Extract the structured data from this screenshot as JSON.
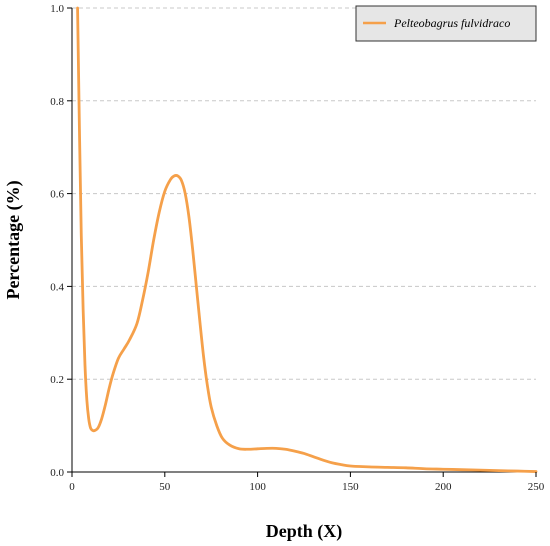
{
  "chart_data": {
    "type": "line",
    "title": "",
    "xlabel": "Depth (X)",
    "ylabel": "Percentage (%)",
    "xlim": [
      0,
      250
    ],
    "ylim": [
      0,
      1.0
    ],
    "x_ticks": [
      0,
      50,
      100,
      150,
      200,
      250
    ],
    "y_ticks": [
      0.0,
      0.2,
      0.4,
      0.6,
      0.8,
      1.0
    ],
    "x_tick_labels": [
      "0",
      "50",
      "100",
      "150",
      "200",
      "250"
    ],
    "y_tick_labels": [
      "0.0",
      "0.2",
      "0.4",
      "0.6",
      "0.8",
      "1.0"
    ],
    "grid": "horizontal-dashed",
    "legend_position": "top-right",
    "series": [
      {
        "name": "Pelteobagrus fulvidraco",
        "color": "#F5A04A",
        "x": [
          3,
          4,
          5,
          6,
          7,
          8,
          9,
          10,
          11,
          12,
          14,
          16,
          18,
          20,
          22,
          25,
          28,
          31,
          35,
          38,
          41,
          44,
          47,
          50,
          53,
          55,
          57,
          59,
          61,
          63,
          65,
          67,
          69,
          71,
          73,
          75,
          78,
          81,
          85,
          90,
          95,
          100,
          105,
          110,
          115,
          120,
          125,
          130,
          135,
          140,
          145,
          150,
          160,
          170,
          180,
          190,
          200,
          210,
          220,
          230,
          240,
          250
        ],
        "y": [
          1.0,
          0.74,
          0.51,
          0.35,
          0.23,
          0.155,
          0.115,
          0.095,
          0.09,
          0.089,
          0.095,
          0.115,
          0.145,
          0.18,
          0.21,
          0.245,
          0.265,
          0.285,
          0.32,
          0.37,
          0.43,
          0.5,
          0.56,
          0.605,
          0.63,
          0.638,
          0.638,
          0.628,
          0.6,
          0.55,
          0.48,
          0.4,
          0.32,
          0.245,
          0.185,
          0.14,
          0.1,
          0.073,
          0.058,
          0.05,
          0.049,
          0.05,
          0.051,
          0.051,
          0.049,
          0.045,
          0.04,
          0.033,
          0.026,
          0.02,
          0.016,
          0.013,
          0.011,
          0.01,
          0.009,
          0.007,
          0.006,
          0.005,
          0.004,
          0.003,
          0.002,
          0.001
        ]
      }
    ]
  }
}
